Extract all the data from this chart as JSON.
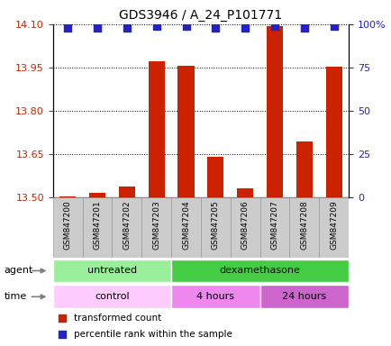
{
  "title": "GDS3946 / A_24_P101771",
  "samples": [
    "GSM847200",
    "GSM847201",
    "GSM847202",
    "GSM847203",
    "GSM847204",
    "GSM847205",
    "GSM847206",
    "GSM847207",
    "GSM847208",
    "GSM847209"
  ],
  "bar_values": [
    13.504,
    13.516,
    13.538,
    13.972,
    13.956,
    13.641,
    13.532,
    14.094,
    13.693,
    13.952
  ],
  "percentile_values": [
    98,
    98,
    98,
    99,
    99,
    98,
    98,
    99,
    98,
    99
  ],
  "ylim": [
    13.5,
    14.1
  ],
  "y_ticks": [
    13.5,
    13.65,
    13.8,
    13.95,
    14.1
  ],
  "right_ylim": [
    0,
    100
  ],
  "right_yticks": [
    0,
    25,
    50,
    75,
    100
  ],
  "right_yticklabels": [
    "0",
    "25",
    "50",
    "75",
    "100%"
  ],
  "bar_color": "#cc2200",
  "dot_color": "#2222cc",
  "agent_groups": [
    {
      "label": "untreated",
      "start": 0,
      "end": 4,
      "color": "#99ee99"
    },
    {
      "label": "dexamethasone",
      "start": 4,
      "end": 10,
      "color": "#44cc44"
    }
  ],
  "time_groups": [
    {
      "label": "control",
      "start": 0,
      "end": 4,
      "color": "#ffccff"
    },
    {
      "label": "4 hours",
      "start": 4,
      "end": 7,
      "color": "#ee88ee"
    },
    {
      "label": "24 hours",
      "start": 7,
      "end": 10,
      "color": "#cc66cc"
    }
  ],
  "legend_items": [
    {
      "label": "transformed count",
      "color": "#cc2200"
    },
    {
      "label": "percentile rank within the sample",
      "color": "#2222cc"
    }
  ],
  "left_color": "#cc2200",
  "right_color": "#2222cc",
  "bar_width": 0.55,
  "dot_size": 35,
  "sample_box_color": "#cccccc",
  "sample_box_edge": "#999999"
}
